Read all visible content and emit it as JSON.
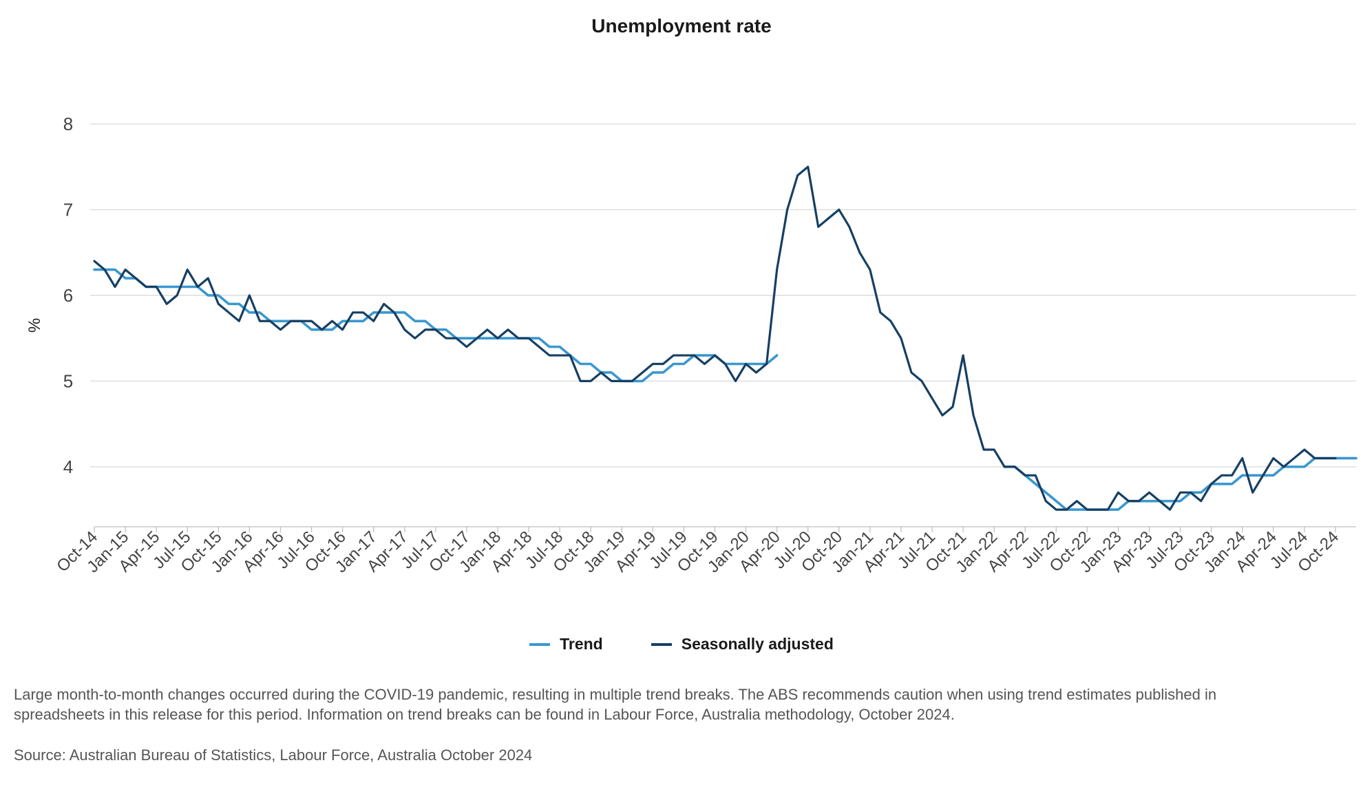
{
  "title": "Unemployment rate",
  "note": "Large month-to-month changes occurred during the COVID-19 pandemic, resulting in multiple trend breaks. The ABS recommends caution when using trend estimates published in spreadsheets in this release for this period. Information on trend breaks can be found in Labour Force, Australia methodology, October 2024.",
  "source": "Source: Australian Bureau of Statistics, Labour Force, Australia October 2024",
  "colors": {
    "trend": "#3a97cf",
    "seasonally_adjusted": "#163f63",
    "grid": "#d9d9d9"
  },
  "chart_data": {
    "type": "line",
    "title": "Unemployment rate",
    "ylabel": "%",
    "xlabel": "",
    "ylim": [
      3.3,
      8
    ],
    "yticks": [
      4,
      5,
      6,
      7,
      8
    ],
    "grid": true,
    "legend_position": "bottom",
    "x_start": "Oct-14",
    "x_tick_labels": [
      "Oct-14",
      "Jan-15",
      "Apr-15",
      "Jul-15",
      "Oct-15",
      "Jan-16",
      "Apr-16",
      "Jul-16",
      "Oct-16",
      "Jan-17",
      "Apr-17",
      "Jul-17",
      "Oct-17",
      "Jan-18",
      "Apr-18",
      "Jul-18",
      "Oct-18",
      "Jan-19",
      "Apr-19",
      "Jul-19",
      "Oct-19",
      "Jan-20",
      "Apr-20",
      "Jul-20",
      "Oct-20",
      "Jan-21",
      "Apr-21",
      "Jul-21",
      "Oct-21",
      "Jan-22",
      "Apr-22",
      "Jul-22",
      "Oct-22",
      "Jan-23",
      "Apr-23",
      "Jul-23",
      "Oct-23",
      "Jan-24",
      "Apr-24",
      "Jul-24",
      "Oct-24"
    ],
    "series": [
      {
        "name": "Trend",
        "color": "#3a97cf",
        "values": [
          6.3,
          6.3,
          6.3,
          6.2,
          6.2,
          6.1,
          6.1,
          6.1,
          6.1,
          6.1,
          6.1,
          6.0,
          6.0,
          5.9,
          5.9,
          5.8,
          5.8,
          5.7,
          5.7,
          5.7,
          5.7,
          5.6,
          5.6,
          5.6,
          5.7,
          5.7,
          5.7,
          5.8,
          5.8,
          5.8,
          5.8,
          5.7,
          5.7,
          5.6,
          5.6,
          5.5,
          5.5,
          5.5,
          5.5,
          5.5,
          5.5,
          5.5,
          5.5,
          5.5,
          5.4,
          5.4,
          5.3,
          5.2,
          5.2,
          5.1,
          5.1,
          5.0,
          5.0,
          5.0,
          5.1,
          5.1,
          5.2,
          5.2,
          5.3,
          5.3,
          5.3,
          5.2,
          5.2,
          5.2,
          5.2,
          5.2,
          5.3,
          null,
          null,
          null,
          null,
          null,
          null,
          null,
          null,
          null,
          null,
          null,
          null,
          null,
          null,
          null,
          null,
          null,
          null,
          null,
          null,
          null,
          4.0,
          4.0,
          3.9,
          3.8,
          3.7,
          3.6,
          3.5,
          3.5,
          3.5,
          3.5,
          3.5,
          3.5,
          3.6,
          3.6,
          3.6,
          3.6,
          3.6,
          3.6,
          3.7,
          3.7,
          3.8,
          3.8,
          3.8,
          3.9,
          3.9,
          3.9,
          3.9,
          4.0,
          4.0,
          4.0,
          4.1,
          4.1,
          4.1,
          4.1,
          4.1
        ]
      },
      {
        "name": "Seasonally adjusted",
        "color": "#163f63",
        "values": [
          6.4,
          6.3,
          6.1,
          6.3,
          6.2,
          6.1,
          6.1,
          5.9,
          6.0,
          6.3,
          6.1,
          6.2,
          5.9,
          5.8,
          5.7,
          6.0,
          5.7,
          5.7,
          5.6,
          5.7,
          5.7,
          5.7,
          5.6,
          5.7,
          5.6,
          5.8,
          5.8,
          5.7,
          5.9,
          5.8,
          5.6,
          5.5,
          5.6,
          5.6,
          5.5,
          5.5,
          5.4,
          5.5,
          5.6,
          5.5,
          5.6,
          5.5,
          5.5,
          5.4,
          5.3,
          5.3,
          5.3,
          5.0,
          5.0,
          5.1,
          5.0,
          5.0,
          5.0,
          5.1,
          5.2,
          5.2,
          5.3,
          5.3,
          5.3,
          5.2,
          5.3,
          5.2,
          5.0,
          5.2,
          5.1,
          5.2,
          6.3,
          7.0,
          7.4,
          7.5,
          6.8,
          6.9,
          7.0,
          6.8,
          6.5,
          6.3,
          5.8,
          5.7,
          5.5,
          5.1,
          5.0,
          4.8,
          4.6,
          4.7,
          5.3,
          4.6,
          4.2,
          4.2,
          4.0,
          4.0,
          3.9,
          3.9,
          3.6,
          3.5,
          3.5,
          3.6,
          3.5,
          3.5,
          3.5,
          3.7,
          3.6,
          3.6,
          3.7,
          3.6,
          3.5,
          3.7,
          3.7,
          3.6,
          3.8,
          3.9,
          3.9,
          4.1,
          3.7,
          3.9,
          4.1,
          4.0,
          4.1,
          4.2,
          4.1,
          4.1,
          4.1
        ]
      }
    ]
  }
}
